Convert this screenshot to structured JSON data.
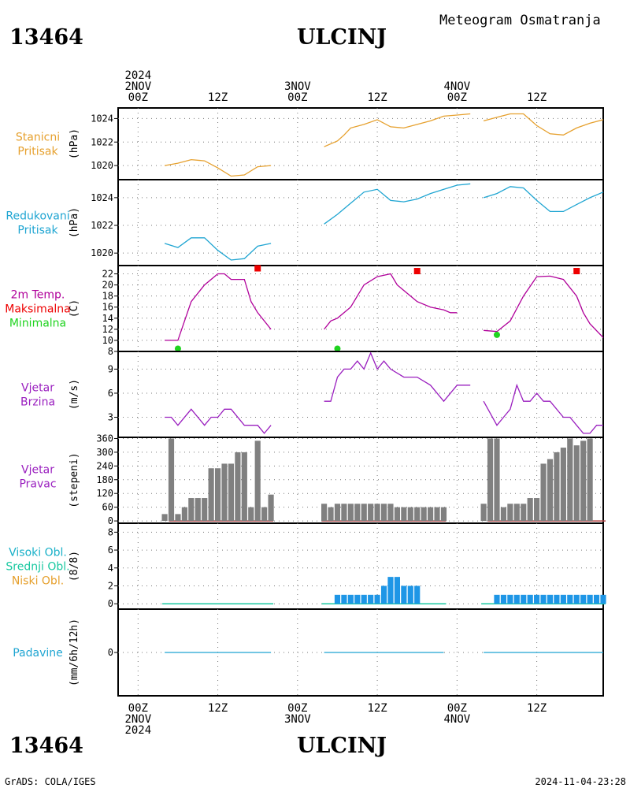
{
  "header": {
    "station_id": "13464",
    "station_name": "ULCINJ",
    "product_title": "Meteogram Osmatranja",
    "footer_station_id": "13464",
    "footer_station_name": "ULCINJ",
    "credit": "GrADS: COLA/IGES",
    "timestamp": "2024-11-04-23:28"
  },
  "time_axis": {
    "top_labels": [
      {
        "hour": 0,
        "lines": [
          "2024",
          "2NOV",
          "00Z"
        ]
      },
      {
        "hour": 12,
        "lines": [
          "12Z"
        ]
      },
      {
        "hour": 24,
        "lines": [
          "3NOV",
          "00Z"
        ]
      },
      {
        "hour": 36,
        "lines": [
          "12Z"
        ]
      },
      {
        "hour": 48,
        "lines": [
          "4NOV",
          "00Z"
        ]
      },
      {
        "hour": 60,
        "lines": [
          "12Z"
        ]
      }
    ],
    "bottom_labels": [
      {
        "hour": 0,
        "lines": [
          "00Z",
          "2NOV",
          "2024"
        ]
      },
      {
        "hour": 12,
        "lines": [
          "12Z"
        ]
      },
      {
        "hour": 24,
        "lines": [
          "00Z",
          "3NOV"
        ]
      },
      {
        "hour": 36,
        "lines": [
          "12Z"
        ]
      },
      {
        "hour": 48,
        "lines": [
          "00Z",
          "4NOV"
        ]
      },
      {
        "hour": 60,
        "lines": [
          "12Z"
        ]
      }
    ],
    "hour_range": [
      -3,
      70
    ],
    "grid_hours": [
      0,
      12,
      24,
      36,
      48,
      60
    ]
  },
  "colors": {
    "pressure_station": "#e6a02d",
    "pressure_reduced": "#1fa5d2",
    "temperature": "#b0009a",
    "tmax": "#ee0000",
    "tmin": "#1fd31f",
    "wind": "#9a1fbf",
    "wind_dir_bar": "#808080",
    "wind_dir_base": "#b04040",
    "cloud_high": "#18b0c8",
    "cloud_mid": "#18c8a0",
    "cloud_low": "#e6a02d",
    "cloud_bar": "#1e96e6",
    "precip": "#1fa5d2"
  },
  "chart_data": [
    {
      "type": "line",
      "labels": [
        "Stanicni",
        "Pritisak"
      ],
      "ylabel": "(hPa)",
      "ylim": [
        1018.8,
        1024.9
      ],
      "yticks": [
        1020,
        1022,
        1024
      ],
      "grid": true,
      "series": [
        {
          "x": [
            4,
            6,
            8,
            10,
            12,
            14,
            16,
            18,
            20
          ],
          "y": [
            1020.0,
            1020.2,
            1020.5,
            1020.4,
            1019.8,
            1019.1,
            1019.2,
            1019.9,
            1020.0
          ]
        },
        {
          "x": [
            28,
            30,
            31,
            32,
            34,
            36,
            38,
            40,
            42,
            44,
            46,
            48,
            50
          ],
          "y": [
            1021.6,
            1022.1,
            1022.6,
            1023.2,
            1023.5,
            1023.9,
            1023.3,
            1023.2,
            1023.5,
            1023.8,
            1024.2,
            1024.3,
            1024.4
          ]
        },
        {
          "x": [
            52,
            54,
            56,
            58,
            60,
            62,
            64,
            66,
            68,
            70
          ],
          "y": [
            1023.8,
            1024.1,
            1024.4,
            1024.4,
            1023.4,
            1022.7,
            1022.6,
            1023.2,
            1023.6,
            1023.9
          ]
        }
      ]
    },
    {
      "type": "line",
      "labels": [
        "Redukovani",
        "Pritisak"
      ],
      "ylabel": "(hPa)",
      "ylim": [
        1019.1,
        1025.3
      ],
      "yticks": [
        1020,
        1022,
        1024
      ],
      "grid": true,
      "series": [
        {
          "x": [
            4,
            6,
            8,
            10,
            12,
            14,
            16,
            18,
            20
          ],
          "y": [
            1020.7,
            1020.4,
            1021.1,
            1021.1,
            1020.2,
            1019.5,
            1019.6,
            1020.5,
            1020.7
          ]
        },
        {
          "x": [
            28,
            30,
            32,
            34,
            36,
            38,
            40,
            42,
            44,
            46,
            48,
            50
          ],
          "y": [
            1022.1,
            1022.8,
            1023.6,
            1024.4,
            1024.6,
            1023.8,
            1023.7,
            1023.9,
            1024.3,
            1024.6,
            1024.9,
            1025.0
          ]
        },
        {
          "x": [
            52,
            54,
            56,
            58,
            60,
            62,
            64,
            66,
            68,
            70
          ],
          "y": [
            1024.0,
            1024.3,
            1024.8,
            1024.7,
            1023.8,
            1023.0,
            1023.0,
            1023.5,
            1024.0,
            1024.4
          ]
        }
      ]
    },
    {
      "type": "line",
      "labels": [
        "2m Temp.",
        "Maksimalna",
        "Minimalna"
      ],
      "ylabel": "(C)",
      "ylim": [
        8,
        23.5
      ],
      "yticks": [
        8,
        10,
        12,
        14,
        16,
        18,
        20,
        22
      ],
      "grid": true,
      "series": [
        {
          "x": [
            4,
            5,
            6,
            8,
            10,
            12,
            13,
            14,
            16,
            17,
            18,
            20
          ],
          "y": [
            10,
            10,
            10,
            17,
            20,
            22,
            22,
            21,
            21,
            17,
            15,
            12
          ]
        },
        {
          "x": [
            28,
            29,
            30,
            32,
            34,
            36,
            38,
            39,
            40,
            42,
            44,
            46,
            47,
            48
          ],
          "y": [
            12,
            13.5,
            14,
            16,
            20,
            21.5,
            22,
            20,
            19,
            17,
            16,
            15.5,
            15,
            15
          ]
        },
        {
          "x": [
            52,
            54,
            56,
            58,
            60,
            62,
            64,
            66,
            67,
            68,
            70
          ],
          "y": [
            11.8,
            11.6,
            13.5,
            18,
            21.5,
            21.6,
            21,
            18,
            15,
            13,
            10.5
          ]
        }
      ],
      "tmax": [
        {
          "x": 18,
          "y": 23
        },
        {
          "x": 42,
          "y": 22.5
        },
        {
          "x": 66,
          "y": 22.5
        }
      ],
      "tmin": [
        {
          "x": 6,
          "y": 8.5
        },
        {
          "x": 30,
          "y": 8.5
        },
        {
          "x": 54,
          "y": 11
        }
      ]
    },
    {
      "type": "line",
      "labels": [
        "Vjetar",
        "Brzina"
      ],
      "ylabel": "(m/s)",
      "ylim": [
        0.5,
        11.2
      ],
      "yticks": [
        3,
        6,
        9
      ],
      "grid": true,
      "series": [
        {
          "x": [
            4,
            5,
            6,
            8,
            10,
            11,
            12,
            13,
            14,
            16,
            18,
            19,
            20
          ],
          "y": [
            3,
            3,
            2,
            4,
            2,
            3,
            3,
            4,
            4,
            2,
            2,
            1,
            2
          ]
        },
        {
          "x": [
            28,
            29,
            30,
            31,
            32,
            33,
            34,
            35,
            36,
            37,
            38,
            40,
            42,
            44,
            46,
            48,
            50
          ],
          "y": [
            5,
            5,
            8,
            9,
            9,
            10,
            9,
            11,
            9,
            10,
            9,
            8,
            8,
            7,
            5,
            7,
            7
          ]
        },
        {
          "x": [
            52,
            54,
            55,
            56,
            57,
            58,
            59,
            60,
            61,
            62,
            64,
            65,
            66,
            67,
            68,
            69,
            70
          ],
          "y": [
            5,
            2,
            3,
            4,
            7,
            5,
            5,
            6,
            5,
            5,
            3,
            3,
            2,
            1,
            1,
            2,
            2
          ]
        }
      ]
    },
    {
      "type": "bar",
      "labels": [
        "Vjetar",
        "Pravac"
      ],
      "ylabel": "(stepeni)",
      "ylim": [
        -10,
        365
      ],
      "yticks": [
        0,
        60,
        120,
        180,
        240,
        300,
        360
      ],
      "grid": true,
      "bar_width_hours": 0.85,
      "x": [
        4,
        5,
        6,
        7,
        8,
        9,
        10,
        11,
        12,
        13,
        14,
        15,
        16,
        17,
        18,
        19,
        20,
        28,
        29,
        30,
        31,
        32,
        33,
        34,
        35,
        36,
        37,
        38,
        39,
        40,
        41,
        42,
        43,
        44,
        45,
        46,
        52,
        53,
        54,
        55,
        56,
        57,
        58,
        59,
        60,
        61,
        62,
        63,
        64,
        65,
        66,
        67,
        68,
        69,
        70
      ],
      "values": [
        30,
        360,
        30,
        60,
        100,
        100,
        100,
        230,
        230,
        250,
        250,
        300,
        300,
        60,
        350,
        60,
        115,
        75,
        60,
        75,
        75,
        75,
        75,
        75,
        75,
        75,
        75,
        75,
        60,
        60,
        60,
        60,
        60,
        60,
        60,
        60,
        75,
        360,
        360,
        60,
        75,
        75,
        75,
        100,
        100,
        250,
        270,
        300,
        320,
        360,
        330,
        350,
        360,
        0,
        0
      ],
      "base_ranges": [
        [
          5,
          20
        ],
        [
          28,
          46
        ],
        [
          53,
          70
        ]
      ]
    },
    {
      "type": "bar",
      "labels": [
        "Visoki Obl.",
        "Srednji Obl.",
        "Niski Obl."
      ],
      "ylabel": "(8/8)",
      "ylim": [
        -0.6,
        9
      ],
      "yticks": [
        0,
        2,
        4,
        6,
        8
      ],
      "grid": true,
      "bar_width_hours": 0.85,
      "x": [
        30,
        31,
        32,
        33,
        34,
        35,
        36,
        37,
        38,
        39,
        40,
        41,
        42,
        54,
        55,
        56,
        57,
        58,
        59,
        60,
        61,
        62,
        63,
        64,
        65,
        66,
        67,
        68,
        69,
        70
      ],
      "values": [
        1,
        1,
        1,
        1,
        1,
        1,
        1,
        2,
        3,
        3,
        2,
        2,
        2,
        1,
        1,
        1,
        1,
        1,
        1,
        1,
        1,
        1,
        1,
        1,
        1,
        1,
        1,
        1,
        1,
        1
      ],
      "base_ranges": [
        [
          4,
          20
        ],
        [
          28,
          46
        ],
        [
          52,
          70
        ]
      ]
    },
    {
      "type": "line",
      "labels": [
        "Padavine"
      ],
      "ylabel": "(mm/6h/12h)",
      "ylim": [
        -5,
        5
      ],
      "yticks": [
        0
      ],
      "grid": true,
      "series": [
        {
          "x": [
            4,
            20
          ],
          "y": [
            0,
            0
          ]
        },
        {
          "x": [
            28,
            46
          ],
          "y": [
            0,
            0
          ]
        },
        {
          "x": [
            52,
            70
          ],
          "y": [
            0,
            0
          ]
        }
      ]
    }
  ]
}
